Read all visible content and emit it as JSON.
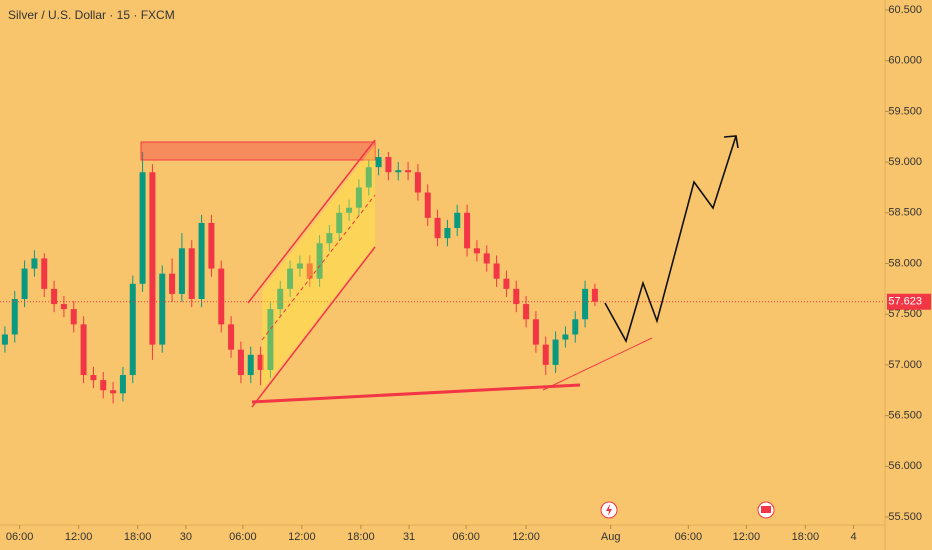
{
  "chart_data": {
    "type": "candlestick",
    "title": "Silver / U.S. Dollar · 15 · FXCM",
    "x": [
      -1.5,
      -0.5,
      0.5,
      1.5,
      2.5,
      3.5,
      4.5,
      5.5,
      6.5,
      7.5,
      8.5,
      9.5,
      10.5,
      11.5,
      12.5,
      13.5,
      14.5,
      15.5,
      16.5,
      17.5,
      18.5,
      19.5,
      20.5,
      21.5,
      22.5,
      23.5,
      24.5,
      25.5,
      26.5,
      27.5,
      28.5,
      29.5,
      30.5,
      31.5,
      32.5,
      33.5,
      34.5,
      35.5,
      36.5,
      37.5,
      38.5,
      39.5,
      40.5,
      41.5,
      42.5,
      43.5,
      44.5,
      45.5,
      46.5,
      47.5,
      48.5,
      49.5,
      50.5,
      51.5,
      52.5,
      53.5,
      54.5,
      55.5,
      56.5,
      57.5,
      58.5
    ],
    "open": [
      57.2,
      57.3,
      57.65,
      57.95,
      58.05,
      57.75,
      57.6,
      57.55,
      57.4,
      56.9,
      56.85,
      56.75,
      56.72,
      56.9,
      57.8,
      58.9,
      57.2,
      57.9,
      57.7,
      58.15,
      57.65,
      58.4,
      57.95,
      57.4,
      57.15,
      56.9,
      57.1,
      56.95,
      57.55,
      57.75,
      57.95,
      58.0,
      57.85,
      58.2,
      58.3,
      58.5,
      58.55,
      58.75,
      58.95,
      59.05,
      58.9,
      58.92,
      58.9,
      58.7,
      58.45,
      58.25,
      58.35,
      58.5,
      58.15,
      58.1,
      58.0,
      57.85,
      57.75,
      57.6,
      57.45,
      57.2,
      57.0,
      57.25,
      57.3,
      57.45,
      57.75
    ],
    "high": [
      57.38,
      57.73,
      58.03,
      58.13,
      58.1,
      57.83,
      57.68,
      57.63,
      57.48,
      56.98,
      56.93,
      56.83,
      56.98,
      57.88,
      59.1,
      58.98,
      57.98,
      58.05,
      58.3,
      58.23,
      58.48,
      58.48,
      58.03,
      57.48,
      57.23,
      57.18,
      57.18,
      57.63,
      57.83,
      58.03,
      58.08,
      58.08,
      58.28,
      58.38,
      58.58,
      58.63,
      58.83,
      59.03,
      59.13,
      59.1,
      59.0,
      59.0,
      58.98,
      58.78,
      58.53,
      58.43,
      58.58,
      58.58,
      58.23,
      58.18,
      58.08,
      57.93,
      57.83,
      57.68,
      57.53,
      57.28,
      57.33,
      57.38,
      57.53,
      57.83,
      57.8
    ],
    "low": [
      57.12,
      57.22,
      57.57,
      57.87,
      57.67,
      57.52,
      57.47,
      57.32,
      56.82,
      56.77,
      56.67,
      56.62,
      56.64,
      56.82,
      57.72,
      57.05,
      57.12,
      57.62,
      57.62,
      57.57,
      57.57,
      57.87,
      57.32,
      57.07,
      56.82,
      56.82,
      56.8,
      56.87,
      57.47,
      57.67,
      57.87,
      57.77,
      57.77,
      58.12,
      58.22,
      58.42,
      58.47,
      58.67,
      58.87,
      58.82,
      58.82,
      58.82,
      58.62,
      58.37,
      58.17,
      58.17,
      58.27,
      58.07,
      58.02,
      57.92,
      57.77,
      57.67,
      57.52,
      57.37,
      57.12,
      56.9,
      56.92,
      57.17,
      57.22,
      57.37,
      57.58
    ],
    "close": [
      57.3,
      57.65,
      57.95,
      58.05,
      57.75,
      57.6,
      57.55,
      57.4,
      56.9,
      56.85,
      56.75,
      56.72,
      56.9,
      57.8,
      58.9,
      57.2,
      57.9,
      57.7,
      58.15,
      57.65,
      58.4,
      57.95,
      57.4,
      57.15,
      56.9,
      57.1,
      56.95,
      57.55,
      57.75,
      57.95,
      58.0,
      57.85,
      58.2,
      58.3,
      58.5,
      58.55,
      58.75,
      58.95,
      59.05,
      58.9,
      58.92,
      58.9,
      58.7,
      58.45,
      58.25,
      58.35,
      58.5,
      58.15,
      58.1,
      58.0,
      57.85,
      57.75,
      57.6,
      57.45,
      57.2,
      57.0,
      57.25,
      57.3,
      57.45,
      57.75,
      57.623
    ],
    "up_color": "#089981",
    "down_color": "#f23645",
    "last_price": {
      "value": 57.623,
      "label": "57.623"
    },
    "xlim": [
      -2,
      88
    ],
    "xticks": [
      {
        "value": 0,
        "label": "06:00"
      },
      {
        "value": 6,
        "label": "12:00"
      },
      {
        "value": 12,
        "label": "18:00"
      },
      {
        "value": 16.9,
        "label": "30"
      },
      {
        "value": 22.7,
        "label": "06:00"
      },
      {
        "value": 28.7,
        "label": "12:00"
      },
      {
        "value": 34.7,
        "label": "18:00"
      },
      {
        "value": 39.6,
        "label": "31"
      },
      {
        "value": 45.4,
        "label": "06:00"
      },
      {
        "value": 51.5,
        "label": "12:00"
      },
      {
        "value": 60.1,
        "label": "Aug"
      },
      {
        "value": 68,
        "label": "06:00"
      },
      {
        "value": 73.9,
        "label": "12:00"
      },
      {
        "value": 79.9,
        "label": "18:00"
      },
      {
        "value": 84.8,
        "label": "4"
      }
    ],
    "ylim": [
      55.5,
      60.5
    ],
    "yticks": [
      {
        "value": 55.5,
        "label": "55.500"
      },
      {
        "value": 56,
        "label": "56.000"
      },
      {
        "value": 56.5,
        "label": "56.500"
      },
      {
        "value": 57,
        "label": "57.000"
      },
      {
        "value": 57.5,
        "label": "57.500"
      },
      {
        "value": 58,
        "label": "58.000"
      },
      {
        "value": 58.5,
        "label": "58.500"
      },
      {
        "value": 59,
        "label": "59.000"
      },
      {
        "value": 59.5,
        "label": "59.500"
      },
      {
        "value": 60,
        "label": "60.000"
      },
      {
        "value": 60.5,
        "label": "60.500"
      }
    ]
  }
}
